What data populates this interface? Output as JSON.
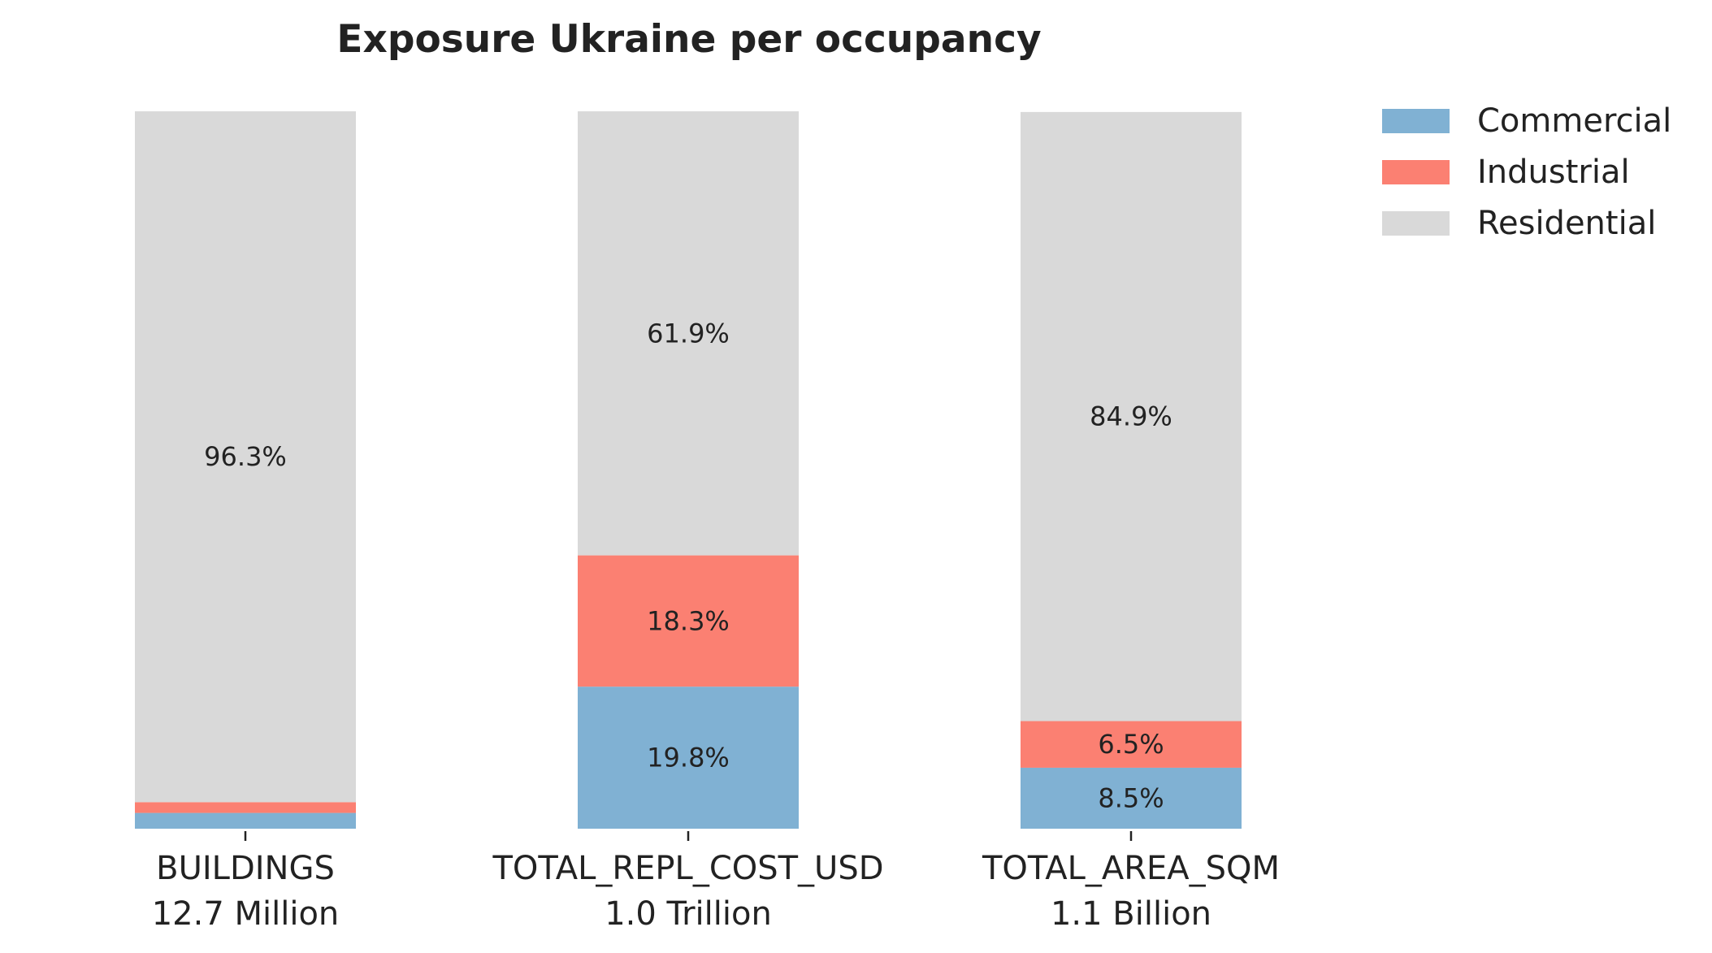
{
  "chart_data": {
    "type": "bar",
    "stacked": true,
    "title": "Exposure Ukraine per occupancy",
    "categories": [
      "BUILDINGS",
      "TOTAL_REPL_COST_USD",
      "TOTAL_AREA_SQM"
    ],
    "category_totals": [
      "12.7 Million",
      "1.0 Trillion",
      "1.1 Billion"
    ],
    "ylim": [
      0,
      100
    ],
    "grid": false,
    "legend_position": "top-right",
    "series": [
      {
        "name": "Commercial",
        "color": "#80b1d3",
        "values": [
          2.2,
          19.8,
          8.5
        ],
        "labels": [
          "",
          "19.8%",
          "8.5%"
        ]
      },
      {
        "name": "Industrial",
        "color": "#fb8072",
        "values": [
          1.5,
          18.3,
          6.5
        ],
        "labels": [
          "",
          "18.3%",
          "6.5%"
        ]
      },
      {
        "name": "Residential",
        "color": "#d9d9d9",
        "values": [
          96.3,
          61.9,
          84.9
        ],
        "labels": [
          "96.3%",
          "61.9%",
          "84.9%"
        ]
      }
    ]
  }
}
